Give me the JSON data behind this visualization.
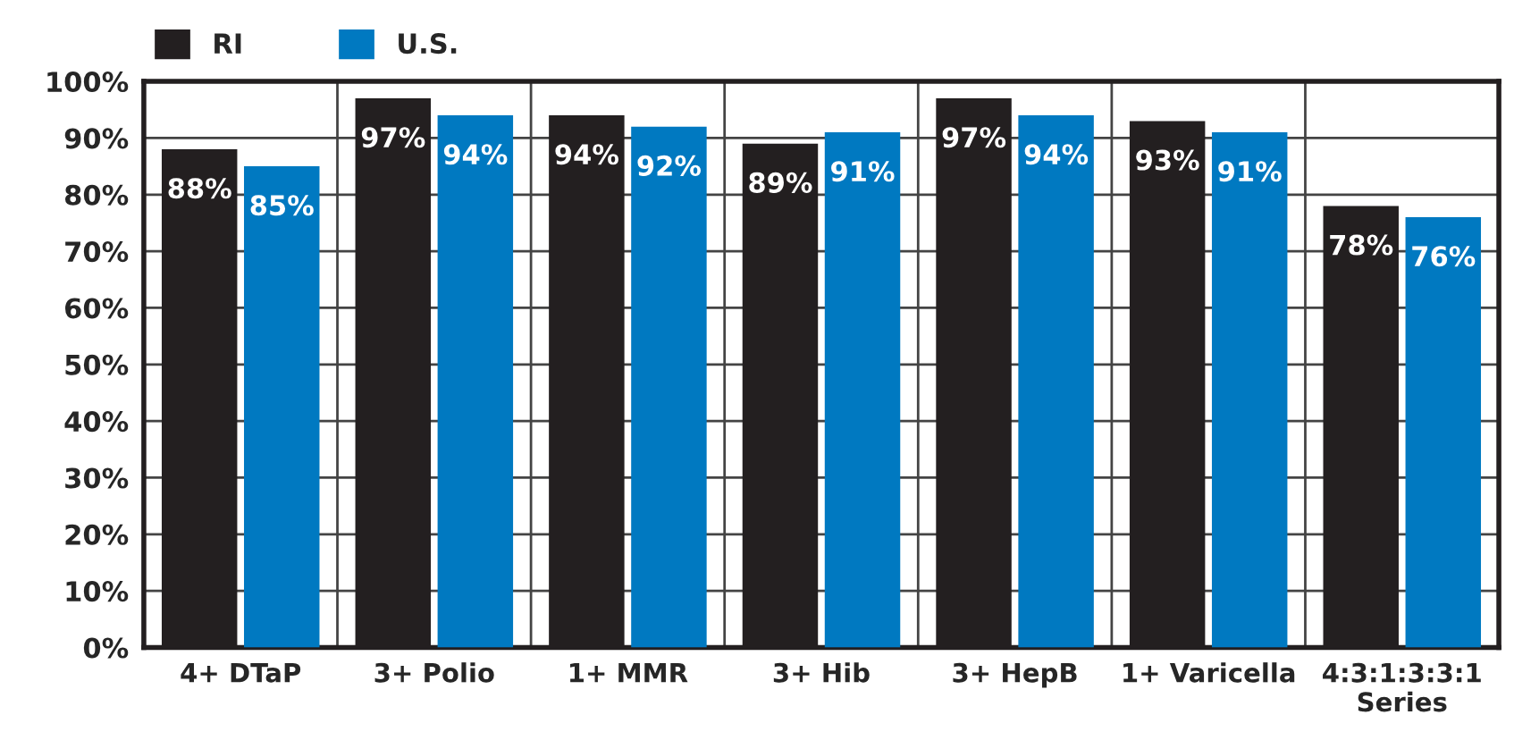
{
  "chart_data": {
    "type": "bar",
    "categories": [
      "4+ DTaP",
      "3+ Polio",
      "1+ MMR",
      "3+ Hib",
      "3+ HepB",
      "1+ Varicella",
      "4:3:1:3:3:1\nSeries"
    ],
    "series": [
      {
        "name": "RI",
        "color": "#231f20",
        "values": [
          88,
          97,
          94,
          89,
          97,
          93,
          78
        ]
      },
      {
        "name": "U.S.",
        "color": "#0079c1",
        "values": [
          85,
          94,
          92,
          91,
          94,
          91,
          76
        ]
      }
    ],
    "ylim": [
      0,
      100
    ],
    "yticks": [
      {
        "value": 0,
        "label": "0%"
      },
      {
        "value": 10,
        "label": "10%"
      },
      {
        "value": 20,
        "label": "20%"
      },
      {
        "value": 30,
        "label": "30%"
      },
      {
        "value": 40,
        "label": "40%"
      },
      {
        "value": 50,
        "label": "50%"
      },
      {
        "value": 60,
        "label": "60%"
      },
      {
        "value": 70,
        "label": "70%"
      },
      {
        "value": 80,
        "label": "80%"
      },
      {
        "value": 90,
        "label": "90%"
      },
      {
        "value": 100,
        "label": "100%"
      }
    ],
    "value_labels": [
      [
        "88%",
        "97%",
        "94%",
        "89%",
        "97%",
        "93%",
        "78%"
      ],
      [
        "85%",
        "94%",
        "92%",
        "91%",
        "94%",
        "91%",
        "76%"
      ]
    ],
    "grid": true,
    "legend": "top left"
  }
}
